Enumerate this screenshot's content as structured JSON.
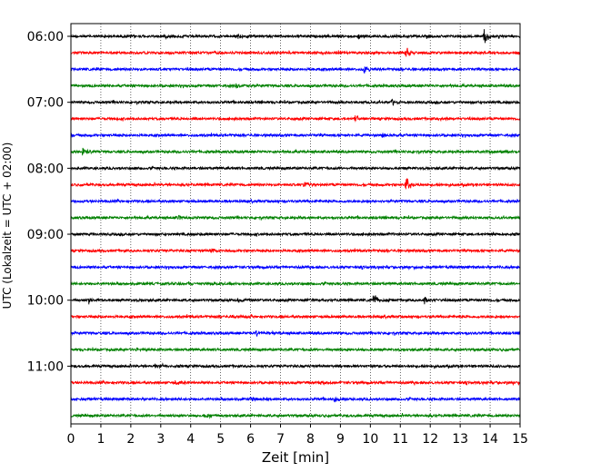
{
  "chart_data": {
    "type": "line",
    "title": "",
    "xlabel": "Zeit  [min]",
    "ylabel": "UTC (Lokalzeit = UTC + 02:00)",
    "xlim": [
      0,
      15
    ],
    "x_ticks": [
      "0",
      "1",
      "2",
      "3",
      "4",
      "5",
      "6",
      "7",
      "8",
      "9",
      "10",
      "11",
      "12",
      "13",
      "14",
      "15"
    ],
    "grid": "vertical dotted",
    "trace_colors": [
      "#000000",
      "#ff0000",
      "#0000ff",
      "#008000"
    ],
    "y_tick_labels": [
      "06:00",
      "07:00",
      "08:00",
      "09:00",
      "10:00",
      "11:00"
    ],
    "trace_interval_min": 15,
    "traces": [
      {
        "start": "06:00",
        "color": "#000000",
        "events": [
          {
            "t": 13.8,
            "amp": 1.0
          },
          {
            "t": 5.6,
            "amp": 0.35
          },
          {
            "t": 9.6,
            "amp": 0.3
          }
        ]
      },
      {
        "start": "06:15",
        "color": "#ff0000",
        "events": [
          {
            "t": 11.2,
            "amp": 0.8
          },
          {
            "t": 13.8,
            "amp": 0.3
          }
        ]
      },
      {
        "start": "06:30",
        "color": "#0000ff",
        "events": [
          {
            "t": 9.8,
            "amp": 0.5
          }
        ]
      },
      {
        "start": "06:45",
        "color": "#008000",
        "events": [
          {
            "t": 5.5,
            "amp": 0.45
          }
        ]
      },
      {
        "start": "07:00",
        "color": "#000000",
        "events": [
          {
            "t": 10.7,
            "amp": 0.45
          }
        ]
      },
      {
        "start": "07:15",
        "color": "#ff0000",
        "events": [
          {
            "t": 9.5,
            "amp": 0.5
          },
          {
            "t": 12.3,
            "amp": 0.2
          }
        ]
      },
      {
        "start": "07:30",
        "color": "#0000ff",
        "events": [
          {
            "t": 10.4,
            "amp": 0.25
          }
        ]
      },
      {
        "start": "07:45",
        "color": "#008000",
        "events": [
          {
            "t": 0.4,
            "amp": 0.55
          },
          {
            "t": 13.9,
            "amp": 0.3
          }
        ]
      },
      {
        "start": "08:00",
        "color": "#000000",
        "events": []
      },
      {
        "start": "08:15",
        "color": "#ff0000",
        "events": [
          {
            "t": 11.2,
            "amp": 1.1
          },
          {
            "t": 7.8,
            "amp": 0.5
          }
        ]
      },
      {
        "start": "08:30",
        "color": "#0000ff",
        "events": []
      },
      {
        "start": "08:45",
        "color": "#008000",
        "events": [
          {
            "t": 3.6,
            "amp": 0.45
          }
        ]
      },
      {
        "start": "09:00",
        "color": "#000000",
        "events": []
      },
      {
        "start": "09:15",
        "color": "#ff0000",
        "events": [
          {
            "t": 4.7,
            "amp": 0.5
          }
        ]
      },
      {
        "start": "09:30",
        "color": "#0000ff",
        "events": []
      },
      {
        "start": "09:45",
        "color": "#008000",
        "events": []
      },
      {
        "start": "10:00",
        "color": "#000000",
        "events": [
          {
            "t": 10.1,
            "amp": 0.9
          },
          {
            "t": 0.6,
            "amp": 0.45
          },
          {
            "t": 11.8,
            "amp": 0.4
          },
          {
            "t": 5.6,
            "amp": 0.25
          },
          {
            "t": 8.0,
            "amp": 0.2
          }
        ]
      },
      {
        "start": "10:15",
        "color": "#ff0000",
        "events": [
          {
            "t": 5.4,
            "amp": 0.3
          }
        ]
      },
      {
        "start": "10:30",
        "color": "#0000ff",
        "events": [
          {
            "t": 6.2,
            "amp": 0.45
          }
        ]
      },
      {
        "start": "10:45",
        "color": "#008000",
        "events": [
          {
            "t": 2.2,
            "amp": 0.25
          }
        ]
      },
      {
        "start": "11:00",
        "color": "#000000",
        "events": [
          {
            "t": 2.8,
            "amp": 0.35
          }
        ]
      },
      {
        "start": "11:15",
        "color": "#ff0000",
        "events": [
          {
            "t": 3.5,
            "amp": 0.3
          },
          {
            "t": 8.3,
            "amp": 0.3
          }
        ]
      },
      {
        "start": "11:30",
        "color": "#0000ff",
        "events": [
          {
            "t": 8.8,
            "amp": 0.6
          },
          {
            "t": 6.0,
            "amp": 0.3
          }
        ]
      },
      {
        "start": "11:45",
        "color": "#008000",
        "events": [
          {
            "t": 4.5,
            "amp": 0.3
          }
        ]
      }
    ]
  }
}
